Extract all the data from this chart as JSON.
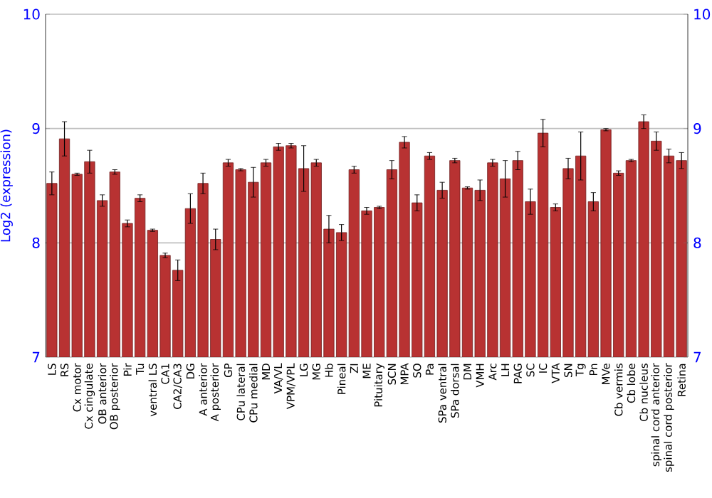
{
  "chart_data": {
    "type": "bar",
    "ylabel": "Log2 (expression)",
    "categories": [
      "LS",
      "RS",
      "Cx motor",
      "Cx cingulate",
      "OB anterior",
      "OB posterior",
      "Pir",
      "Tu",
      "ventral LS",
      "CA1",
      "CA2/CA3",
      "DG",
      "A anterior",
      "A posterior",
      "GP",
      "CPu lateral",
      "CPu medial",
      "MD",
      "VA/VL",
      "VPM/VPL",
      "LG",
      "MG",
      "Hb",
      "Pineal",
      "ZI",
      "ME",
      "Pituitary",
      "SCN",
      "MPA",
      "SO",
      "Pa",
      "SPa ventral",
      "SPa dorsal",
      "DM",
      "VMH",
      "Arc",
      "LH",
      "PAG",
      "SC",
      "IC",
      "VTA",
      "SN",
      "Tg",
      "Pn",
      "MVe",
      "Cb vermis",
      "Cb lobe",
      "Cb nucleus",
      "spinal cord anterior",
      "spinal cord posterior",
      "Retina"
    ],
    "values": [
      8.52,
      8.91,
      8.6,
      8.71,
      8.37,
      8.62,
      8.17,
      8.39,
      8.11,
      7.89,
      7.76,
      8.3,
      8.52,
      8.03,
      8.7,
      8.64,
      8.53,
      8.7,
      8.84,
      8.85,
      8.65,
      8.7,
      8.12,
      8.09,
      8.64,
      8.28,
      8.31,
      8.64,
      8.88,
      8.35,
      8.76,
      8.46,
      8.72,
      8.48,
      8.46,
      8.7,
      8.56,
      8.72,
      8.36,
      8.96,
      8.31,
      8.65,
      8.76,
      8.36,
      8.99,
      8.61,
      8.72,
      9.06,
      8.89,
      8.76,
      8.72
    ],
    "errors": [
      0.1,
      0.15,
      0.01,
      0.1,
      0.05,
      0.02,
      0.03,
      0.03,
      0.01,
      0.02,
      0.09,
      0.13,
      0.09,
      0.09,
      0.03,
      0.01,
      0.13,
      0.03,
      0.03,
      0.02,
      0.2,
      0.03,
      0.12,
      0.07,
      0.03,
      0.03,
      0.01,
      0.08,
      0.05,
      0.07,
      0.03,
      0.07,
      0.02,
      0.01,
      0.09,
      0.03,
      0.16,
      0.08,
      0.11,
      0.12,
      0.03,
      0.09,
      0.21,
      0.08,
      0.01,
      0.02,
      0.01,
      0.06,
      0.08,
      0.06,
      0.07
    ],
    "color": "#b83232",
    "ylim": [
      7,
      10
    ],
    "yticks": [
      7,
      8,
      9,
      10
    ],
    "y2lim": [
      7,
      10
    ],
    "y2ticks": [
      7,
      8,
      9,
      10
    ],
    "grid": "y"
  }
}
